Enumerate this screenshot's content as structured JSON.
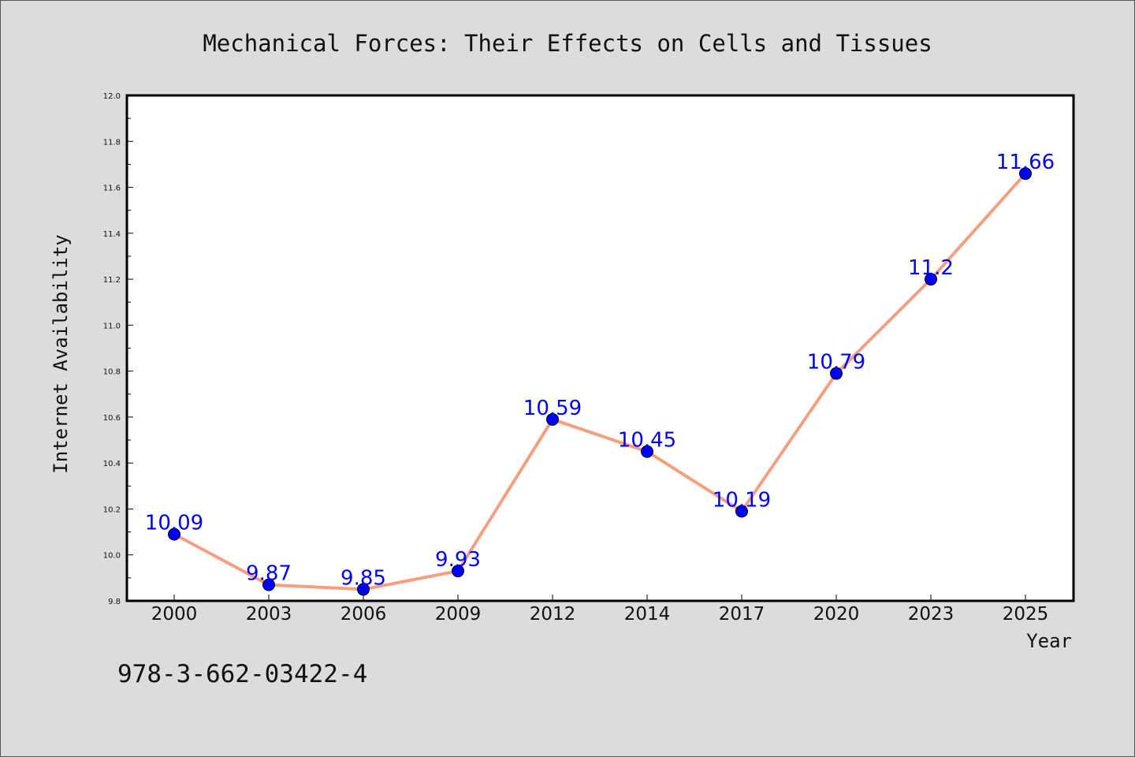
{
  "chart_data": {
    "type": "line",
    "title": "Mechanical Forces: Their Effects on Cells and Tissues",
    "xlabel": "Year",
    "ylabel": "Internet Availability",
    "categories": [
      "2000",
      "2003",
      "2006",
      "2009",
      "2012",
      "2014",
      "2017",
      "2020",
      "2023",
      "2025"
    ],
    "series": [
      {
        "values": [
          10.09,
          9.87,
          9.85,
          9.93,
          10.59,
          10.45,
          10.19,
          10.79,
          11.2,
          11.66
        ],
        "labels": [
          "10.09",
          "9.87",
          "9.85",
          "9.93",
          "10.59",
          "10.45",
          "10.19",
          "10.79",
          "11.2",
          "11.66"
        ],
        "line_color": "#f4a080",
        "marker_color": "#0000ff"
      }
    ],
    "ylim": [
      9.8,
      12.0
    ],
    "yticks": [
      "9.8",
      "10.0",
      "10.2",
      "10.4",
      "10.6",
      "10.8",
      "11.0",
      "11.2",
      "11.4",
      "11.6",
      "11.8",
      "12.0"
    ],
    "grid": false,
    "legend": "none"
  },
  "footer": {
    "isbn": "978-3-662-03422-4"
  }
}
